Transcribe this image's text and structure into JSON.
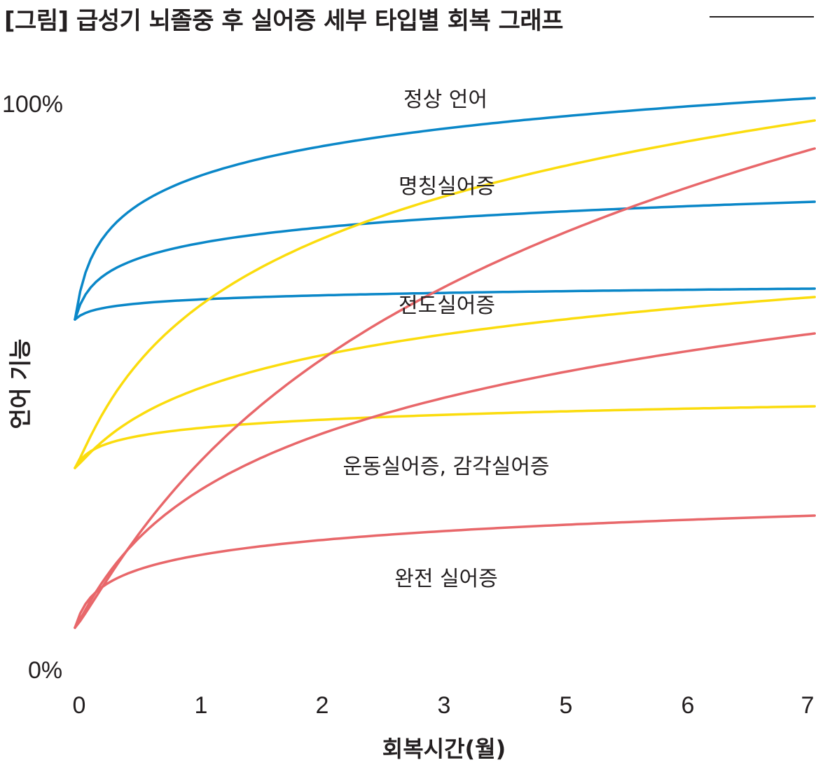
{
  "title": "[그림] 급성기 뇌졸중 후 실어증 세부 타입별 회복 그래프",
  "colors": {
    "blue": "#0a87c8",
    "yellow": "#fbdc0d",
    "red": "#e8676a",
    "text": "#231f20"
  },
  "chart_data": {
    "type": "line",
    "xlabel": "회복시간(월)",
    "ylabel": "언어 기능",
    "x_tick_labels": [
      "0",
      "1",
      "2",
      "3",
      "5",
      "6",
      "7"
    ],
    "y_tick_labels": [
      "100%",
      "0%"
    ],
    "xlim": [
      0,
      7
    ],
    "ylim": [
      0,
      100
    ],
    "curve_labels": [
      "정상 언어",
      "명칭실어증",
      "전도실어증",
      "운동실어증, 감각실어증",
      "완전 실어증"
    ],
    "series": [
      {
        "color": "blue",
        "start": 60.5,
        "end": 100,
        "curvature": 5
      },
      {
        "color": "blue",
        "start": 60.5,
        "end": 81.5,
        "curvature": 5
      },
      {
        "color": "blue",
        "start": 60.5,
        "end": 66,
        "curvature": 5
      },
      {
        "color": "yellow",
        "start": 34,
        "end": 96,
        "curvature": 3
      },
      {
        "color": "yellow",
        "start": 34,
        "end": 64.5,
        "curvature": 3
      },
      {
        "color": "yellow",
        "start": 34,
        "end": 45,
        "curvature": 5
      },
      {
        "color": "red",
        "start": 5.5,
        "end": 91,
        "curvature": 2
      },
      {
        "color": "red",
        "start": 5.5,
        "end": 58,
        "curvature": 3
      },
      {
        "color": "red",
        "start": 5.5,
        "end": 25.5,
        "curvature": 5
      }
    ]
  }
}
